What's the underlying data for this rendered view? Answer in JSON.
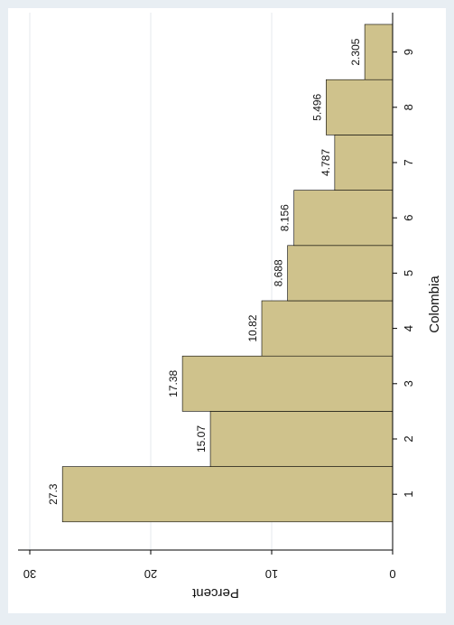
{
  "chart_data": {
    "type": "bar",
    "orientation": "rotated-90-clockwise",
    "categories": [
      "1",
      "2",
      "3",
      "4",
      "5",
      "6",
      "7",
      "8",
      "9"
    ],
    "values": [
      27.3,
      15.07,
      17.38,
      10.82,
      8.688,
      8.156,
      4.787,
      5.496,
      2.305
    ],
    "value_labels": [
      "27.3",
      "15.07",
      "17.38",
      "10.82",
      "8.688",
      "8.156",
      "4.787",
      "5.496",
      "2.305"
    ],
    "xlabel": "Colombia",
    "ylabel": "Percent",
    "ylim": [
      0,
      30
    ],
    "yticks": [
      "0",
      "10",
      "20",
      "30"
    ],
    "grid": true,
    "bar_color": "#cfc28c",
    "bar_edge_color": "#000000"
  }
}
